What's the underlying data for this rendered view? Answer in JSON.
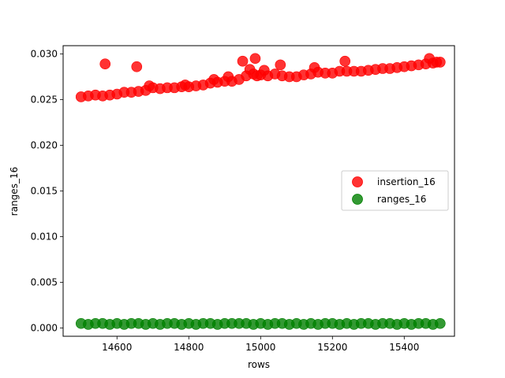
{
  "chart_data": {
    "type": "scatter",
    "title": "",
    "xlabel": "rows",
    "ylabel": "ranges_16",
    "xlim": [
      14450,
      15540
    ],
    "ylim": [
      -0.0009,
      0.0309
    ],
    "xticks": [
      14600,
      14800,
      15000,
      15200,
      15400
    ],
    "yticks": [
      0.0,
      0.005,
      0.01,
      0.015,
      0.02,
      0.025,
      0.03
    ],
    "ytick_labels": [
      "0.000",
      "0.005",
      "0.010",
      "0.015",
      "0.020",
      "0.025",
      "0.030"
    ],
    "grid": false,
    "legend_position": "center-right",
    "series": [
      {
        "name": "insertion_16",
        "color": "#ff0000",
        "x": [
          14500,
          14520,
          14540,
          14560,
          14567,
          14580,
          14600,
          14620,
          14640,
          14655,
          14660,
          14680,
          14690,
          14700,
          14720,
          14740,
          14760,
          14780,
          14790,
          14800,
          14820,
          14840,
          14860,
          14870,
          14880,
          14900,
          14910,
          14920,
          14940,
          14950,
          14960,
          14970,
          14980,
          14985,
          14990,
          15000,
          15010,
          15020,
          15040,
          15055,
          15060,
          15080,
          15100,
          15120,
          15140,
          15150,
          15160,
          15180,
          15200,
          15220,
          15235,
          15240,
          15260,
          15280,
          15300,
          15320,
          15340,
          15360,
          15380,
          15400,
          15420,
          15440,
          15460,
          15470,
          15480,
          15490,
          15500
        ],
        "y": [
          0.0253,
          0.0254,
          0.0255,
          0.0254,
          0.0289,
          0.0255,
          0.0256,
          0.0258,
          0.0258,
          0.0286,
          0.0259,
          0.026,
          0.0265,
          0.0263,
          0.0262,
          0.0263,
          0.0263,
          0.0264,
          0.0266,
          0.0264,
          0.0265,
          0.0266,
          0.0268,
          0.0272,
          0.0269,
          0.027,
          0.0275,
          0.027,
          0.0272,
          0.0292,
          0.0276,
          0.0283,
          0.0278,
          0.0295,
          0.0276,
          0.0277,
          0.0282,
          0.0276,
          0.0278,
          0.0288,
          0.0276,
          0.0275,
          0.0275,
          0.0277,
          0.0278,
          0.0285,
          0.028,
          0.0279,
          0.0279,
          0.0281,
          0.0292,
          0.0281,
          0.0281,
          0.0281,
          0.0282,
          0.0283,
          0.0284,
          0.0284,
          0.0285,
          0.0286,
          0.0287,
          0.0288,
          0.0289,
          0.0295,
          0.029,
          0.0291,
          0.0291
        ]
      },
      {
        "name": "ranges_16",
        "color": "#008000",
        "x": [
          14500,
          14520,
          14540,
          14560,
          14580,
          14600,
          14620,
          14640,
          14660,
          14680,
          14700,
          14720,
          14740,
          14760,
          14780,
          14800,
          14820,
          14840,
          14860,
          14880,
          14900,
          14920,
          14940,
          14960,
          14980,
          15000,
          15020,
          15040,
          15060,
          15080,
          15100,
          15120,
          15140,
          15160,
          15180,
          15200,
          15220,
          15240,
          15260,
          15280,
          15300,
          15320,
          15340,
          15360,
          15380,
          15400,
          15420,
          15440,
          15460,
          15480,
          15500
        ],
        "y": [
          0.0005,
          0.0004,
          0.0005,
          0.0005,
          0.0004,
          0.0005,
          0.0004,
          0.0005,
          0.0005,
          0.0004,
          0.0005,
          0.0004,
          0.0005,
          0.0005,
          0.0004,
          0.0005,
          0.0004,
          0.0005,
          0.0005,
          0.0004,
          0.0005,
          0.0005,
          0.0005,
          0.0005,
          0.0004,
          0.0005,
          0.0004,
          0.0005,
          0.0005,
          0.0004,
          0.0005,
          0.0004,
          0.0005,
          0.0004,
          0.0005,
          0.0005,
          0.0004,
          0.0005,
          0.0004,
          0.0005,
          0.0005,
          0.0004,
          0.0005,
          0.0005,
          0.0004,
          0.0005,
          0.0004,
          0.0005,
          0.0005,
          0.0004,
          0.0005
        ]
      }
    ]
  }
}
